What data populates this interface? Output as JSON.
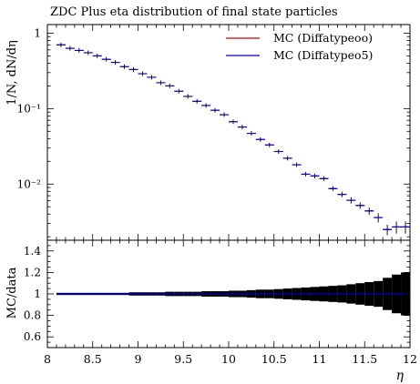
{
  "chart_data": {
    "type": "line",
    "title": "ZDC Plus eta distribution of final state particles",
    "xlabel": "η",
    "top_panel": {
      "ylabel": "1/N, dN/dη",
      "yscale": "log",
      "ylim": [
        0.0018,
        1.3
      ],
      "yticks": [
        {
          "value": 1,
          "label": "1"
        },
        {
          "value": 0.1,
          "label": "10⁻¹"
        },
        {
          "value": 0.01,
          "label": "10⁻²"
        }
      ]
    },
    "ratio_panel": {
      "ylabel": "MC/data",
      "ylim": [
        0.5,
        1.5
      ],
      "yticks": [
        {
          "value": 0.6,
          "label": "0.6"
        },
        {
          "value": 0.8,
          "label": "0.8"
        },
        {
          "value": 1.0,
          "label": "1"
        },
        {
          "value": 1.2,
          "label": "1.2"
        },
        {
          "value": 1.4,
          "label": "1.4"
        }
      ]
    },
    "xlim": [
      8.0,
      12.0
    ],
    "xticks": [
      {
        "value": 8,
        "label": "8"
      },
      {
        "value": 8.5,
        "label": "8.5"
      },
      {
        "value": 9,
        "label": "9"
      },
      {
        "value": 9.5,
        "label": "9.5"
      },
      {
        "value": 10,
        "label": "10"
      },
      {
        "value": 10.5,
        "label": "10.5"
      },
      {
        "value": 11,
        "label": "11"
      },
      {
        "value": 11.5,
        "label": "11.5"
      },
      {
        "value": 12,
        "label": "12"
      }
    ],
    "bin_width": 0.1,
    "x": [
      8.15,
      8.25,
      8.35,
      8.45,
      8.55,
      8.65,
      8.75,
      8.85,
      8.95,
      9.05,
      9.15,
      9.25,
      9.35,
      9.45,
      9.55,
      9.65,
      9.75,
      9.85,
      9.95,
      10.05,
      10.15,
      10.25,
      10.35,
      10.45,
      10.55,
      10.65,
      10.75,
      10.85,
      10.95,
      11.05,
      11.15,
      11.25,
      11.35,
      11.45,
      11.55,
      11.65,
      11.75,
      11.85,
      11.95
    ],
    "data_values": [
      0.7,
      0.63,
      0.59,
      0.55,
      0.5,
      0.45,
      0.41,
      0.36,
      0.33,
      0.29,
      0.26,
      0.22,
      0.2,
      0.17,
      0.145,
      0.125,
      0.11,
      0.095,
      0.083,
      0.067,
      0.057,
      0.047,
      0.039,
      0.033,
      0.027,
      0.022,
      0.018,
      0.0135,
      0.0128,
      0.0118,
      0.0087,
      0.0073,
      0.0061,
      0.0052,
      0.0044,
      0.0036,
      0.0025,
      0.0027,
      0.0027
    ],
    "data_errors": [
      0.01,
      0.009,
      0.008,
      0.008,
      0.007,
      0.006,
      0.006,
      0.005,
      0.005,
      0.004,
      0.004,
      0.004,
      0.003,
      0.003,
      0.003,
      0.003,
      0.002,
      0.002,
      0.002,
      0.002,
      0.0015,
      0.0013,
      0.0011,
      0.001,
      0.0009,
      0.0008,
      0.0007,
      0.0007,
      0.0007,
      0.0007,
      0.0006,
      0.0006,
      0.0006,
      0.0005,
      0.0005,
      0.0005,
      0.0004,
      0.0005,
      0.0005
    ],
    "series": [
      {
        "name": "MC (Diffatypeoo)",
        "color": "#cc0000",
        "values": [
          0.7,
          0.63,
          0.59,
          0.55,
          0.5,
          0.45,
          0.41,
          0.36,
          0.33,
          0.29,
          0.26,
          0.22,
          0.2,
          0.17,
          0.145,
          0.125,
          0.11,
          0.095,
          0.083,
          0.067,
          0.057,
          0.047,
          0.039,
          0.033,
          0.027,
          0.022,
          0.018,
          0.0135,
          0.0128,
          0.0118,
          0.0087,
          0.0073,
          0.0061,
          0.0052,
          0.0044,
          0.0036,
          0.0025,
          0.0027,
          0.0027
        ]
      },
      {
        "name": "MC (Diffatypeo5)",
        "color": "#0000cc",
        "values": [
          0.7,
          0.63,
          0.59,
          0.55,
          0.5,
          0.45,
          0.41,
          0.36,
          0.33,
          0.29,
          0.26,
          0.22,
          0.2,
          0.17,
          0.145,
          0.125,
          0.11,
          0.095,
          0.083,
          0.067,
          0.057,
          0.047,
          0.039,
          0.033,
          0.027,
          0.022,
          0.018,
          0.0135,
          0.0128,
          0.0118,
          0.0087,
          0.0073,
          0.0061,
          0.0052,
          0.0044,
          0.0036,
          0.0025,
          0.0027,
          0.0027
        ]
      }
    ],
    "ratio_band_halfwidth": [
      0.01,
      0.01,
      0.01,
      0.01,
      0.01,
      0.01,
      0.01,
      0.01,
      0.015,
      0.015,
      0.015,
      0.015,
      0.02,
      0.02,
      0.02,
      0.02,
      0.025,
      0.025,
      0.025,
      0.03,
      0.03,
      0.035,
      0.04,
      0.04,
      0.045,
      0.05,
      0.055,
      0.06,
      0.065,
      0.07,
      0.075,
      0.08,
      0.09,
      0.1,
      0.11,
      0.12,
      0.15,
      0.18,
      0.2
    ],
    "ratio_values": [
      1,
      1,
      1,
      1,
      1,
      1,
      1,
      1,
      1,
      1,
      1,
      1,
      1,
      1,
      1,
      1,
      1,
      1,
      1,
      1,
      1,
      1,
      1,
      1,
      1,
      1,
      1,
      1,
      1,
      1,
      1,
      1,
      1,
      1,
      1,
      1,
      1,
      1,
      1
    ],
    "legend_position": "top-right",
    "band_color": "#000000"
  }
}
